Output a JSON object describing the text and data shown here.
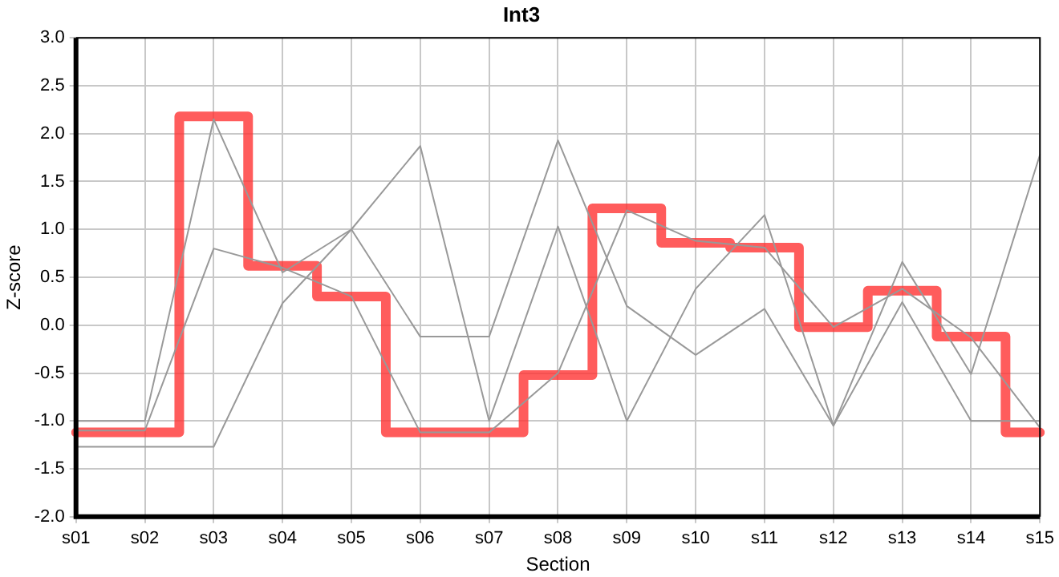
{
  "chart_data": {
    "type": "line",
    "title": "Int3",
    "xlabel": "Section",
    "ylabel": "Z-score",
    "categories": [
      "s01",
      "s02",
      "s03",
      "s04",
      "s05",
      "s06",
      "s07",
      "s08",
      "s09",
      "s10",
      "s11",
      "s12",
      "s13",
      "s14",
      "s15"
    ],
    "series": [
      {
        "type": "line",
        "color": "#999999",
        "values": [
          -1.0,
          -1.0,
          2.15,
          0.55,
          1.0,
          1.87,
          -1.0,
          1.03,
          -1.0,
          0.38,
          1.15,
          -1.05,
          0.66,
          -0.51,
          1.78
        ]
      },
      {
        "type": "line",
        "color": "#999999",
        "values": [
          -1.1,
          -1.1,
          0.8,
          0.6,
          0.3,
          -1.12,
          -1.12,
          -0.5,
          1.2,
          0.88,
          0.81,
          -0.02,
          0.38,
          -0.13,
          -1.07
        ]
      },
      {
        "type": "line",
        "color": "#999999",
        "values": [
          -1.27,
          -1.27,
          -1.27,
          0.23,
          1.0,
          -0.12,
          -0.12,
          1.93,
          0.2,
          -0.31,
          0.17,
          -1.05,
          0.24,
          -1.0,
          -1.0
        ]
      },
      {
        "type": "step",
        "color": "#ff3333",
        "values": [
          -1.12,
          -1.12,
          2.18,
          0.62,
          0.3,
          -1.12,
          -1.12,
          -0.52,
          1.22,
          0.86,
          0.81,
          -0.02,
          0.36,
          -0.12,
          -1.12
        ]
      }
    ],
    "ylim": [
      -2,
      3
    ],
    "yticks": [
      {
        "value": -2,
        "label": "-2.0"
      },
      {
        "value": -1.5,
        "label": "-1.5"
      },
      {
        "value": -1,
        "label": "-1.0"
      },
      {
        "value": -0.5,
        "label": "-0.5"
      },
      {
        "value": 0,
        "label": "0.0"
      },
      {
        "value": 0.5,
        "label": "0.5"
      },
      {
        "value": 1,
        "label": "1.0"
      },
      {
        "value": 1.5,
        "label": "1.5"
      },
      {
        "value": 2,
        "label": "2.0"
      },
      {
        "value": 2.5,
        "label": "2.5"
      },
      {
        "value": 3,
        "label": "3.0"
      }
    ],
    "grid": true,
    "legend": false,
    "marker": "none"
  }
}
